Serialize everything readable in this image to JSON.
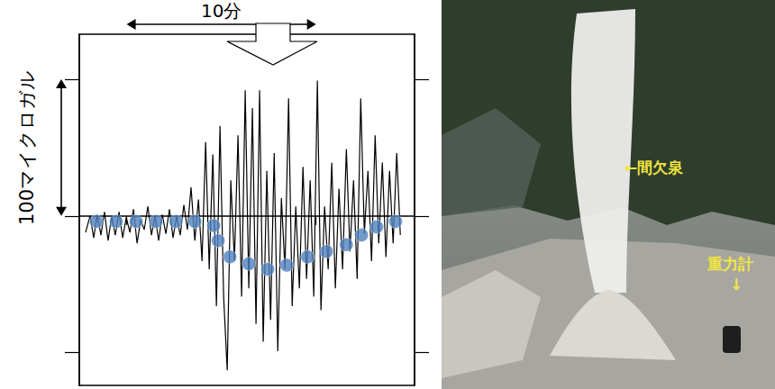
{
  "chart_data": {
    "type": "line",
    "xlim": [
      0,
      17.7
    ],
    "xticks": [
      2.5,
      12.5
    ],
    "ylim": [
      -124,
      133
    ],
    "yticks": [
      -100,
      0,
      100
    ],
    "tick_labels": false,
    "grid": false,
    "annotations": [
      {
        "text": "10分"
      },
      {
        "text": "100マイクロガル"
      }
    ],
    "series": [
      {
        "type": "line",
        "color": "#000000",
        "marker": "none",
        "line_style": "solid",
        "x": [
          0.33,
          0.57,
          0.76,
          0.95,
          1.14,
          1.33,
          1.52,
          1.71,
          1.9,
          2.1,
          2.29,
          2.48,
          2.67,
          2.86,
          3.05,
          3.24,
          3.43,
          3.62,
          3.81,
          4.0,
          4.19,
          4.38,
          4.57,
          4.76,
          4.95,
          5.14,
          5.33,
          5.52,
          5.71,
          5.9,
          6.1,
          6.29,
          6.48,
          6.67,
          6.86,
          7.05,
          7.24,
          7.43,
          7.62,
          7.81,
          8.0,
          8.19,
          8.38,
          8.57,
          8.76,
          8.95,
          9.14,
          9.33,
          9.52,
          9.71,
          9.9,
          10.1,
          10.29,
          10.48,
          10.67,
          10.86,
          11.05,
          11.24,
          11.43,
          11.62,
          11.81,
          12.0,
          12.19,
          12.38,
          12.57,
          12.76,
          12.95,
          13.14,
          13.33,
          13.52,
          13.71,
          13.9,
          14.1,
          14.29,
          14.48,
          14.67,
          14.86,
          15.05,
          15.24,
          15.43,
          15.62,
          15.81,
          16.0,
          16.19,
          16.38,
          16.57,
          16.76,
          16.95
        ],
        "values": [
          -12,
          0,
          -16,
          1,
          -14,
          3,
          -18,
          0,
          -14,
          3,
          -16,
          -1,
          -12,
          5,
          -20,
          -3,
          -10,
          7,
          -14,
          0,
          -18,
          1,
          -13,
          5,
          -16,
          0,
          -14,
          8,
          -10,
          21,
          -18,
          12,
          -33,
          54,
          -39,
          45,
          -66,
          66,
          -59,
          -113,
          26,
          -33,
          59,
          -59,
          92,
          -53,
          79,
          -79,
          92,
          -92,
          33,
          -76,
          46,
          -99,
          13,
          -39,
          86,
          -66,
          7,
          -53,
          36,
          -46,
          26,
          -59,
          99,
          -69,
          7,
          -39,
          39,
          -53,
          20,
          -39,
          49,
          -26,
          26,
          -46,
          86,
          -13,
          33,
          -33,
          59,
          -20,
          39,
          -30,
          33,
          -20,
          46,
          -14
        ]
      },
      {
        "type": "scatter",
        "color": "#4f81bd",
        "marker": "circle",
        "x": [
          0.9,
          1.95,
          3.0,
          4.05,
          5.1,
          6.1,
          7.1,
          7.33,
          7.95,
          8.95,
          9.95,
          10.95,
          12.05,
          13.05,
          14.1,
          14.9,
          15.7,
          16.7
        ],
        "values": [
          -4,
          -4,
          -4,
          -4,
          -4,
          -4,
          -7,
          -18,
          -30,
          -35,
          -39,
          -36,
          -30,
          -26,
          -21,
          -14,
          -8,
          -4
        ]
      }
    ]
  },
  "photo": {
    "labels": [
      "←間欠泉",
      "重力計",
      "↓"
    ]
  }
}
